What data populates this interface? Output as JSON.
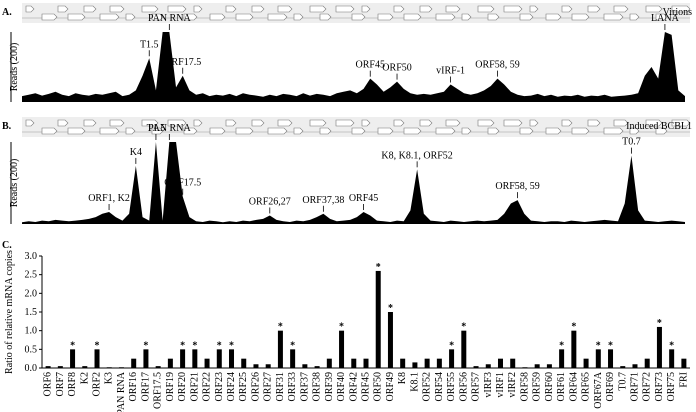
{
  "chart_data": [
    {
      "type": "area",
      "panel": "A.",
      "title": "Virions",
      "ylabel": "Reads (200)",
      "color": "#000000",
      "ylim": [
        0,
        240
      ],
      "values": [
        20,
        25,
        30,
        22,
        28,
        35,
        25,
        20,
        30,
        25,
        22,
        28,
        25,
        30,
        35,
        20,
        25,
        40,
        90,
        150,
        40,
        260,
        260,
        50,
        90,
        40,
        25,
        30,
        20,
        25,
        22,
        28,
        20,
        30,
        25,
        22,
        18,
        25,
        20,
        28,
        25,
        20,
        30,
        22,
        28,
        25,
        20,
        30,
        35,
        40,
        30,
        45,
        80,
        60,
        35,
        50,
        70,
        45,
        30,
        25,
        28,
        25,
        30,
        35,
        60,
        45,
        30,
        25,
        30,
        40,
        55,
        80,
        60,
        35,
        25,
        20,
        22,
        28,
        20,
        25,
        18,
        22,
        20,
        25,
        18,
        22,
        20,
        25,
        18,
        20,
        22,
        25,
        30,
        90,
        120,
        80,
        260,
        230,
        40,
        20
      ],
      "annotations": [
        {
          "text": "T1.5",
          "x": 19
        },
        {
          "text": "PAN RNA",
          "x": 22
        },
        {
          "text": "ORF17.5",
          "x": 24
        },
        {
          "text": "ORF45",
          "x": 52
        },
        {
          "text": "ORF50",
          "x": 56
        },
        {
          "text": "vIRF-1",
          "x": 64
        },
        {
          "text": "ORF58, 59",
          "x": 71
        },
        {
          "text": "LANA",
          "x": 96
        }
      ]
    },
    {
      "type": "area",
      "panel": "B.",
      "title": "Induced BCBL1",
      "ylabel": "Reads (200)",
      "color": "#000000",
      "ylim": [
        0,
        240
      ],
      "values": [
        5,
        8,
        6,
        10,
        8,
        12,
        10,
        8,
        10,
        12,
        15,
        20,
        30,
        35,
        20,
        10,
        30,
        170,
        20,
        10,
        240,
        10,
        260,
        260,
        80,
        20,
        8,
        6,
        10,
        8,
        5,
        8,
        6,
        10,
        8,
        12,
        15,
        25,
        12,
        8,
        6,
        10,
        8,
        12,
        20,
        30,
        15,
        8,
        10,
        12,
        20,
        35,
        25,
        10,
        8,
        6,
        10,
        8,
        40,
        160,
        30,
        10,
        8,
        6,
        10,
        8,
        6,
        8,
        10,
        8,
        10,
        12,
        30,
        60,
        70,
        30,
        10,
        8,
        6,
        8,
        8,
        6,
        10,
        8,
        6,
        8,
        10,
        12,
        10,
        8,
        60,
        200,
        40,
        10,
        8,
        6,
        8,
        10,
        8,
        6
      ],
      "annotations": [
        {
          "text": "ORF1, K2",
          "x": 13
        },
        {
          "text": "K4",
          "x": 17
        },
        {
          "text": "T1.5",
          "x": 20
        },
        {
          "text": "PAN RNA",
          "x": 22
        },
        {
          "text": "ORF17.5",
          "x": 24
        },
        {
          "text": "ORF26,27",
          "x": 37
        },
        {
          "text": "ORF37,38",
          "x": 45
        },
        {
          "text": "ORF45",
          "x": 51
        },
        {
          "text": "K8, K8.1, ORF52",
          "x": 59
        },
        {
          "text": "ORF58, 59",
          "x": 74
        },
        {
          "text": "T0.7",
          "x": 91
        }
      ]
    },
    {
      "type": "bar",
      "panel": "C.",
      "ylabel": "Ratio of relative mRNA copies",
      "color": "#000000",
      "categories": [
        "ORF6",
        "ORF7",
        "ORF8",
        "K2",
        "ORF2",
        "K3",
        "PAN RNA",
        "ORF16",
        "ORF17",
        "ORF17.5",
        "ORF19",
        "ORF20",
        "ORF21",
        "ORF22",
        "ORF23",
        "ORF24",
        "ORF25",
        "ORF26",
        "ORF27",
        "ORF31",
        "ORF33",
        "ORF37",
        "ORF38",
        "ORF39",
        "ORF40",
        "ORF42",
        "ORF45",
        "ORF50",
        "ORF49",
        "K8",
        "K8.1",
        "ORF52",
        "ORF54",
        "ORF55",
        "ORF56",
        "ORF57",
        "vIRF3",
        "vIRF1",
        "vIRF2",
        "ORF58",
        "ORF59",
        "ORF60",
        "ORF61",
        "ORF64",
        "ORF65",
        "ORF67A",
        "ORF69",
        "T0.7",
        "ORF71",
        "ORF72",
        "ORF73",
        "ORF75",
        "FRI"
      ],
      "values": [
        0.05,
        0.05,
        0.5,
        0.05,
        0.5,
        0.02,
        0.02,
        0.25,
        0.5,
        0.05,
        0.25,
        0.5,
        0.5,
        0.25,
        0.5,
        0.5,
        0.25,
        0.1,
        0.1,
        1.0,
        0.5,
        0.1,
        0.05,
        0.25,
        1.0,
        0.25,
        0.25,
        2.6,
        1.5,
        0.25,
        0.15,
        0.25,
        0.25,
        0.5,
        1.0,
        0.05,
        0.1,
        0.25,
        0.25,
        0.02,
        0.1,
        0.1,
        0.5,
        1.0,
        0.25,
        0.5,
        0.5,
        0.05,
        0.1,
        0.25,
        1.1,
        0.5,
        0.25
      ],
      "significance": [
        null,
        null,
        "*",
        null,
        "*",
        null,
        null,
        null,
        "*",
        null,
        null,
        "*",
        "*",
        null,
        "*",
        "*",
        null,
        null,
        null,
        "*",
        "*",
        null,
        null,
        null,
        "*",
        null,
        null,
        "*",
        "*",
        null,
        null,
        null,
        null,
        "*",
        "*",
        null,
        null,
        null,
        null,
        null,
        null,
        null,
        "*",
        "*",
        null,
        "*",
        "*",
        null,
        null,
        null,
        "*",
        "*",
        null
      ],
      "ylim": [
        0,
        3
      ],
      "yticks": [
        {
          "value": 0,
          "label": "0.0"
        },
        {
          "value": 0.5,
          "label": "0.5"
        },
        {
          "value": 1,
          "label": "1.0"
        },
        {
          "value": 1.5,
          "label": "1.5"
        },
        {
          "value": 2,
          "label": "2.0"
        },
        {
          "value": 2.5,
          "label": "2.5"
        },
        {
          "value": 3,
          "label": "3.0"
        }
      ]
    }
  ]
}
